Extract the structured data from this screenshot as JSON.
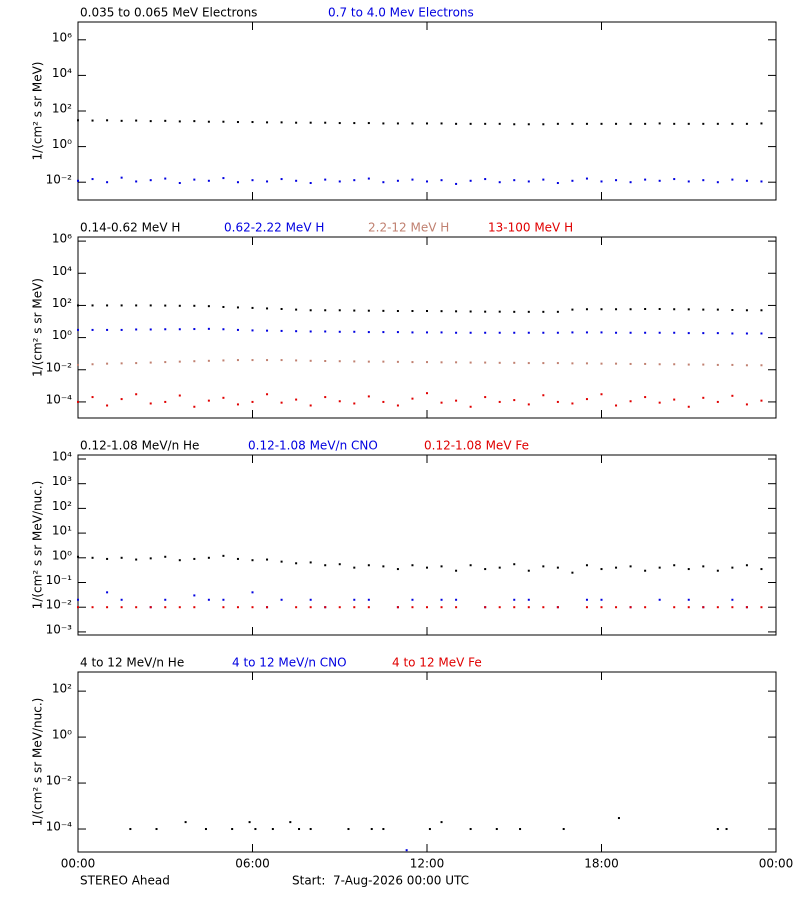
{
  "chart_data": [
    {
      "type": "scatter",
      "y_label": "1/(cm² s sr MeV)",
      "log_y": true,
      "ylim": [
        0.001,
        10000000
      ],
      "yticks": [
        {
          "value": 0.01,
          "label": "10⁻²"
        },
        {
          "value": 1,
          "label": "10⁰"
        },
        {
          "value": 100,
          "label": "10²"
        },
        {
          "value": 10000,
          "label": "10⁴"
        },
        {
          "value": 1000000,
          "label": "10⁶"
        }
      ],
      "xlim": [
        0,
        24
      ],
      "xticks": [
        0,
        6,
        12,
        18,
        24
      ],
      "x": [
        0,
        0.5,
        1,
        1.5,
        2,
        2.5,
        3,
        3.5,
        4,
        4.5,
        5,
        5.5,
        6,
        6.5,
        7,
        7.5,
        8,
        8.5,
        9,
        9.5,
        10,
        10.5,
        11,
        11.5,
        12,
        12.5,
        13,
        13.5,
        14,
        14.5,
        15,
        15.5,
        16,
        16.5,
        17,
        17.5,
        18,
        18.5,
        19,
        19.5,
        20,
        20.5,
        21,
        21.5,
        22,
        22.5,
        23,
        23.5
      ],
      "series": [
        {
          "name": "0.035 to 0.065 MeV Electrons",
          "color": "#000000",
          "values": [
            30,
            29,
            30,
            28,
            29,
            27,
            28,
            26,
            27,
            25,
            25,
            24,
            24,
            23,
            23,
            22,
            22,
            22,
            21,
            21,
            21,
            20,
            20,
            20,
            20,
            20,
            19,
            19,
            19,
            19,
            18,
            18,
            18,
            19,
            19,
            19,
            19,
            19,
            19,
            19,
            20,
            19,
            19,
            19,
            19,
            19,
            19,
            20
          ]
        },
        {
          "name": "0.7 to 4.0 Mev Electrons",
          "color": "#0000e0",
          "values": [
            0.012,
            0.015,
            0.01,
            0.018,
            0.011,
            0.013,
            0.016,
            0.009,
            0.014,
            0.012,
            0.017,
            0.01,
            0.013,
            0.011,
            0.015,
            0.012,
            0.009,
            0.014,
            0.011,
            0.013,
            0.016,
            0.01,
            0.012,
            0.014,
            0.011,
            0.013,
            0.008,
            0.012,
            0.015,
            0.01,
            0.013,
            0.011,
            0.014,
            0.009,
            0.012,
            0.016,
            0.011,
            0.013,
            0.01,
            0.014,
            0.012,
            0.015,
            0.011,
            0.013,
            0.01,
            0.014,
            0.012,
            0.011
          ]
        }
      ]
    },
    {
      "type": "scatter",
      "y_label": "1/(cm² s sr MeV)",
      "log_y": true,
      "ylim": [
        1e-05,
        1800000
      ],
      "yticks": [
        {
          "value": 0.0001,
          "label": "10⁻⁴"
        },
        {
          "value": 0.01,
          "label": "10⁻²"
        },
        {
          "value": 1,
          "label": "10⁰"
        },
        {
          "value": 100,
          "label": "10²"
        },
        {
          "value": 10000,
          "label": "10⁴"
        },
        {
          "value": 1000000,
          "label": "10⁶"
        }
      ],
      "xlim": [
        0,
        24
      ],
      "xticks": [
        0,
        6,
        12,
        18,
        24
      ],
      "x": [
        0,
        0.5,
        1,
        1.5,
        2,
        2.5,
        3,
        3.5,
        4,
        4.5,
        5,
        5.5,
        6,
        6.5,
        7,
        7.5,
        8,
        8.5,
        9,
        9.5,
        10,
        10.5,
        11,
        11.5,
        12,
        12.5,
        13,
        13.5,
        14,
        14.5,
        15,
        15.5,
        16,
        16.5,
        17,
        17.5,
        18,
        18.5,
        19,
        19.5,
        20,
        20.5,
        21,
        21.5,
        22,
        22.5,
        23,
        23.5
      ],
      "series": [
        {
          "name": "0.14-0.62 MeV H",
          "color": "#000000",
          "values": [
            100,
            100,
            100,
            100,
            100,
            100,
            98,
            95,
            95,
            90,
            80,
            75,
            70,
            65,
            60,
            55,
            50,
            50,
            50,
            48,
            47,
            46,
            45,
            45,
            45,
            44,
            43,
            42,
            41,
            41,
            40,
            40,
            40,
            40,
            55,
            58,
            58,
            58,
            58,
            60,
            60,
            58,
            57,
            55,
            55,
            52,
            50,
            50
          ]
        },
        {
          "name": "0.62-2.22 MeV H",
          "color": "#0000e0",
          "values": [
            3,
            3,
            3,
            3,
            3.2,
            3.2,
            3.3,
            3.3,
            3.4,
            3.5,
            3.3,
            3,
            2.8,
            2.7,
            2.6,
            2.5,
            2.4,
            2.4,
            2.3,
            2.3,
            2.2,
            2.2,
            2.2,
            2.1,
            2.1,
            2.1,
            2,
            2,
            2,
            2,
            2,
            2,
            2,
            2,
            2.1,
            2.1,
            2.1,
            2,
            2,
            2,
            2,
            2,
            1.9,
            1.9,
            1.9,
            1.8,
            1.8,
            1.8
          ]
        },
        {
          "name": "2.2-12 MeV H",
          "color": "#c08070",
          "values": [
            0.02,
            0.022,
            0.024,
            0.025,
            0.026,
            0.028,
            0.03,
            0.032,
            0.034,
            0.036,
            0.038,
            0.04,
            0.04,
            0.04,
            0.04,
            0.038,
            0.036,
            0.035,
            0.034,
            0.033,
            0.032,
            0.032,
            0.031,
            0.03,
            0.03,
            0.029,
            0.029,
            0.028,
            0.028,
            0.027,
            0.027,
            0.026,
            0.026,
            0.026,
            0.025,
            0.025,
            0.024,
            0.024,
            0.023,
            0.023,
            0.022,
            0.022,
            0.021,
            0.021,
            0.02,
            0.02,
            0.019,
            0.019
          ]
        },
        {
          "name": "13-100 MeV H",
          "color": "#e00000",
          "values": [
            0.0001,
            0.0002,
            6e-05,
            0.00015,
            0.0003,
            8e-05,
            0.0001,
            0.00025,
            5e-05,
            0.00012,
            0.00018,
            7e-05,
            0.0001,
            0.0003,
            9e-05,
            0.00014,
            6e-05,
            0.0002,
            0.00011,
            8e-05,
            0.00022,
            0.0001,
            6e-05,
            0.00016,
            0.00035,
            9e-05,
            0.00012,
            5e-05,
            0.0002,
            0.0001,
            0.00013,
            7e-05,
            0.00026,
            0.0001,
            8e-05,
            0.00015,
            0.0003,
            6e-05,
            0.00011,
            0.0002,
            9e-05,
            0.00014,
            5e-05,
            0.00018,
            0.0001,
            0.00024,
            7e-05,
            0.00012
          ]
        }
      ]
    },
    {
      "type": "scatter",
      "y_label": "1/(cm² s sr MeV/nuc.)",
      "log_y": true,
      "ylim": [
        0.00075,
        14500
      ],
      "yticks": [
        {
          "value": 0.001,
          "label": "10⁻³"
        },
        {
          "value": 0.01,
          "label": "10⁻²"
        },
        {
          "value": 0.1,
          "label": "10⁻¹"
        },
        {
          "value": 1,
          "label": "10⁰"
        },
        {
          "value": 10,
          "label": "10¹"
        },
        {
          "value": 100,
          "label": "10²"
        },
        {
          "value": 1000,
          "label": "10³"
        },
        {
          "value": 10000,
          "label": "10⁴"
        }
      ],
      "xlim": [
        0,
        24
      ],
      "xticks": [
        0,
        6,
        12,
        18,
        24
      ],
      "x": [
        0,
        0.5,
        1,
        1.5,
        2,
        2.5,
        3,
        3.5,
        4,
        4.5,
        5,
        5.5,
        6,
        6.5,
        7,
        7.5,
        8,
        8.5,
        9,
        9.5,
        10,
        10.5,
        11,
        11.5,
        12,
        12.5,
        13,
        13.5,
        14,
        14.5,
        15,
        15.5,
        16,
        16.5,
        17,
        17.5,
        18,
        18.5,
        19,
        19.5,
        20,
        20.5,
        21,
        21.5,
        22,
        22.5,
        23,
        23.5
      ],
      "series": [
        {
          "name": "0.12-1.08 MeV/n He",
          "color": "#000000",
          "values": [
            1.1,
            1,
            0.9,
            1,
            0.85,
            0.95,
            1.1,
            0.8,
            0.9,
            1,
            1.2,
            0.9,
            0.8,
            0.85,
            0.7,
            0.6,
            0.65,
            0.5,
            0.55,
            0.4,
            0.5,
            0.45,
            0.35,
            0.5,
            0.4,
            0.45,
            0.3,
            0.5,
            0.35,
            0.4,
            0.55,
            0.3,
            0.45,
            0.4,
            0.25,
            0.5,
            0.35,
            0.4,
            0.45,
            0.3,
            0.4,
            0.5,
            0.35,
            0.45,
            0.3,
            0.4,
            0.5,
            0.35
          ]
        },
        {
          "name": "0.12-1.08 MeV/n CNO",
          "color": "#0000e0",
          "values": [
            0.02,
            null,
            0.04,
            0.02,
            null,
            0.01,
            0.02,
            null,
            0.03,
            0.02,
            0.02,
            null,
            0.04,
            0.01,
            0.02,
            null,
            0.02,
            0.01,
            null,
            0.02,
            0.02,
            null,
            0.01,
            0.02,
            null,
            0.02,
            0.02,
            null,
            0.01,
            null,
            0.02,
            0.02,
            null,
            0.01,
            null,
            0.02,
            0.02,
            null,
            0.01,
            null,
            0.02,
            null,
            0.02,
            0.01,
            null,
            0.02,
            0.01,
            null
          ]
        },
        {
          "name": "0.12-1.08 MeV Fe",
          "color": "#e00000",
          "values": [
            0.01,
            0.01,
            0.01,
            0.01,
            0.01,
            0.01,
            0.01,
            0.01,
            0.01,
            null,
            0.01,
            0.01,
            0.01,
            0.01,
            null,
            0.01,
            0.01,
            0.01,
            0.01,
            0.01,
            0.01,
            null,
            0.01,
            0.01,
            0.01,
            0.01,
            0.01,
            null,
            0.01,
            0.01,
            0.01,
            0.01,
            0.01,
            0.01,
            null,
            0.01,
            0.01,
            0.01,
            0.01,
            0.01,
            null,
            0.01,
            0.01,
            0.01,
            0.01,
            0.01,
            0.01,
            0.01
          ]
        }
      ]
    },
    {
      "type": "scatter",
      "y_label": "1/(cm² s sr MeV/nuc.)",
      "log_y": true,
      "ylim": [
        1e-05,
        680
      ],
      "yticks": [
        {
          "value": 0.0001,
          "label": "10⁻⁴"
        },
        {
          "value": 0.01,
          "label": "10⁻²"
        },
        {
          "value": 1,
          "label": "10⁰"
        },
        {
          "value": 100,
          "label": "10²"
        }
      ],
      "xlim": [
        0,
        24
      ],
      "xticks": [
        {
          "value": 0,
          "label": "00:00"
        },
        {
          "value": 6,
          "label": "06:00"
        },
        {
          "value": 12,
          "label": "12:00"
        },
        {
          "value": 18,
          "label": "18:00"
        },
        {
          "value": 24,
          "label": "00:00"
        }
      ],
      "x": [
        1.8,
        2.7,
        3.7,
        4.4,
        5.3,
        5.9,
        6.1,
        6.7,
        7.3,
        7.6,
        8.0,
        9.3,
        10.1,
        10.5,
        11.3,
        12.1,
        12.5,
        13.5,
        14.4,
        15.2,
        16.7,
        18.6,
        22.0,
        22.3
      ],
      "series": [
        {
          "name": "4 to 12 MeV/n He",
          "color": "#000000",
          "values": [
            0.0001,
            0.0001,
            0.0002,
            0.0001,
            0.0001,
            0.0002,
            0.0001,
            0.0001,
            0.0002,
            0.0001,
            0.0001,
            0.0001,
            0.0001,
            0.0001,
            null,
            0.0001,
            0.0002,
            0.0001,
            0.0001,
            0.0001,
            0.0001,
            0.0003,
            0.0001,
            0.0001
          ]
        },
        {
          "name": "4 to 12 MeV/n CNO",
          "color": "#0000e0",
          "values": [
            null,
            null,
            null,
            null,
            null,
            null,
            null,
            null,
            null,
            null,
            null,
            null,
            null,
            null,
            1.2e-05,
            null,
            null,
            null,
            null,
            null,
            null,
            null,
            null,
            null
          ]
        },
        {
          "name": "4 to 12 MeV Fe",
          "color": "#e00000",
          "values": [
            null,
            null,
            null,
            null,
            null,
            null,
            null,
            null,
            null,
            null,
            null,
            null,
            null,
            null,
            null,
            null,
            null,
            null,
            null,
            null,
            null,
            null,
            null,
            null
          ]
        }
      ]
    }
  ],
  "footer": {
    "spacecraft": "STEREO Ahead",
    "start": "Start:  7-Aug-2026 00:00 UTC"
  }
}
